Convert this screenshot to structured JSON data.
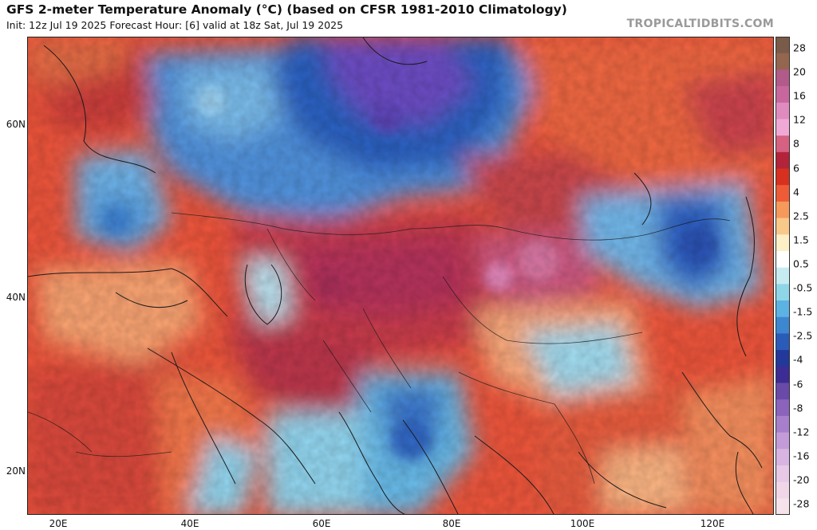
{
  "header": {
    "title": "GFS 2-meter Temperature Anomaly (°C) (based on CFSR 1981-2010 Climatology)",
    "subtitle": "Init: 12z Jul 19 2025   Forecast Hour: [6]   valid at 18z Sat, Jul 19 2025",
    "watermark": "TROPICALTIDBITS.COM"
  },
  "map": {
    "lat_labels": [
      "60N",
      "40N",
      "20N"
    ],
    "lon_labels": [
      "20E",
      "40E",
      "60E",
      "80E",
      "100E",
      "120E"
    ]
  },
  "colorbar": {
    "labels": [
      "28",
      "20",
      "16",
      "12",
      "8",
      "6",
      "4",
      "2.5",
      "1.5",
      "0.5",
      "-0.5",
      "-1.5",
      "-2.5",
      "-4",
      "-6",
      "-8",
      "-12",
      "-16",
      "-20",
      "-28"
    ],
    "colors": [
      "#7a5a48",
      "#94654f",
      "#b25b8a",
      "#c8679e",
      "#e08bc0",
      "#f0a9d6",
      "#d66182",
      "#b3243a",
      "#d7301f",
      "#ee5b37",
      "#f59a5b",
      "#f9c98a",
      "#fdf0c7",
      "#ffffff",
      "#c6ecf2",
      "#8fd5e8",
      "#5cb3e3",
      "#3d87d1",
      "#2a5bb8",
      "#22399b",
      "#3c2c93",
      "#6a4aa8",
      "#8b63bc",
      "#a77fcc",
      "#c39bd8",
      "#d8b4e2",
      "#e7c8e6",
      "#f1d6e8",
      "#f6e2ea"
    ]
  }
}
